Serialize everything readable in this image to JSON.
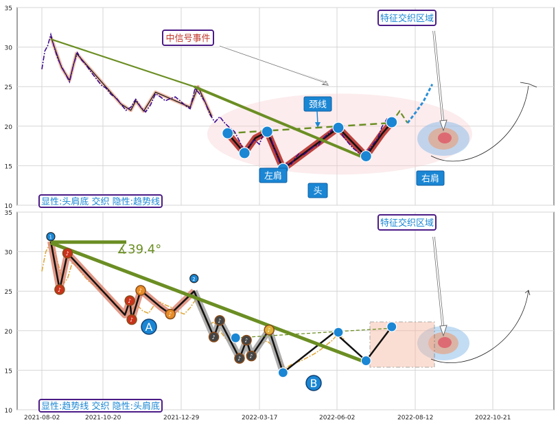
{
  "colors": {
    "axis": "#444444",
    "grid": "#d6d6d6",
    "price": "#3b0a8f",
    "price_bottom": "#e0a83a",
    "pattern": "#111111",
    "pattern_glow_top": "#b3261e",
    "trend": "#6b8e23",
    "node": "#1a86d4",
    "badge_fill": "#1a86d4",
    "callout_border": "#4b1b86",
    "callout_text_red": "#c0392b",
    "callout_text_blue": "#1a86d4",
    "ellipse": "#f6c8cc",
    "target": "#2b8fd6",
    "highlight_box": "#f7b7a0"
  },
  "chart_data": [
    {
      "type": "line",
      "panel": "top",
      "ylim": [
        10,
        35
      ],
      "yticks": [
        "10",
        "15",
        "20",
        "25",
        "30",
        "35"
      ],
      "x_ticks": [
        "2021-08-02",
        "2021-10-20",
        "2021-12-29",
        "2022-03-17",
        "2022-06-02",
        "2022-08-12",
        "2022-10-21"
      ],
      "series": [
        {
          "values_days": [
            [
              0,
              27.2
            ],
            [
              3,
              29.5
            ],
            [
              6,
              30.2
            ],
            [
              9,
              31.6
            ],
            [
              12,
              30.2
            ],
            [
              16,
              28.6
            ],
            [
              20,
              27.5
            ],
            [
              24,
              26.6
            ],
            [
              28,
              25.6
            ],
            [
              32,
              27.8
            ],
            [
              36,
              29.3
            ],
            [
              40,
              28.4
            ],
            [
              45,
              27.7
            ],
            [
              50,
              26.8
            ],
            [
              55,
              26.0
            ],
            [
              60,
              25.2
            ],
            [
              65,
              24.8
            ],
            [
              70,
              24.0
            ],
            [
              75,
              23.6
            ],
            [
              80,
              22.8
            ],
            [
              85,
              22.0
            ],
            [
              90,
              22.4
            ],
            [
              95,
              23.4
            ],
            [
              100,
              22.4
            ],
            [
              105,
              21.8
            ],
            [
              110,
              22.7
            ],
            [
              115,
              24.1
            ],
            [
              120,
              23.7
            ],
            [
              125,
              23.2
            ],
            [
              130,
              23.5
            ],
            [
              135,
              23.7
            ],
            [
              140,
              23.2
            ],
            [
              145,
              22.6
            ],
            [
              150,
              22.2
            ],
            [
              155,
              24.8
            ],
            [
              160,
              24.0
            ],
            [
              165,
              23.1
            ],
            [
              170,
              21.5
            ],
            [
              175,
              20.5
            ],
            [
              180,
              21.2
            ],
            [
              185,
              20.4
            ],
            [
              190,
              19.8
            ],
            [
              195,
              19.3
            ],
            [
              200,
              18.1
            ],
            [
              205,
              16.7
            ],
            [
              210,
              17.5
            ],
            [
              215,
              18.3
            ],
            [
              220,
              17.7
            ],
            [
              225,
              19.2
            ],
            [
              228,
              19.8
            ],
            [
              232,
              18.4
            ],
            [
              236,
              16.9
            ],
            [
              240,
              15.6
            ],
            [
              244,
              14.4
            ],
            [
              248,
              15.3
            ],
            [
              252,
              15.1
            ],
            [
              256,
              15.9
            ],
            [
              260,
              16.5
            ],
            [
              265,
              16.4
            ],
            [
              270,
              16.9
            ],
            [
              275,
              17.4
            ],
            [
              280,
              17.6
            ],
            [
              285,
              18.5
            ],
            [
              290,
              19.1
            ],
            [
              295,
              19.6
            ],
            [
              300,
              19.9
            ],
            [
              305,
              18.7
            ],
            [
              310,
              17.9
            ],
            [
              315,
              17.2
            ],
            [
              320,
              16.7
            ],
            [
              325,
              16.3
            ],
            [
              330,
              16.9
            ],
            [
              335,
              17.7
            ],
            [
              340,
              18.5
            ],
            [
              344,
              19.9
            ],
            [
              349,
              20.9
            ],
            [
              354,
              20.2
            ]
          ]
        },
        {
          "values_days": [
            [
              9,
              31.3
            ],
            [
              20,
              27.4
            ],
            [
              28,
              25.8
            ],
            [
              35,
              29.2
            ],
            [
              80,
              22.8
            ],
            [
              90,
              22.0
            ],
            [
              95,
              23.2
            ],
            [
              103,
              21.9
            ],
            [
              115,
              24.3
            ],
            [
              150,
              22.4
            ],
            [
              158,
              25.0
            ],
            [
              172,
              21.2
            ]
          ]
        },
        {
          "values_days": [
            [
              9,
              31.0
            ],
            [
              154,
              25.0
            ],
            [
              278,
              18.1
            ],
            [
              328,
              15.8
            ],
            [
              354,
              20.5
            ]
          ]
        },
        {
          "values_days": [
            [
              188,
              19.1
            ],
            [
              352,
              20.4
            ]
          ]
        },
        {
          "values_days": [
            [
              354,
              20.5
            ],
            [
              362,
              21.9
            ],
            [
              370,
              20.4
            ],
            [
              378,
              21.7
            ],
            [
              386,
              23.1
            ],
            [
              395,
              25.3
            ]
          ]
        }
      ]
    },
    {
      "type": "line",
      "panel": "bottom",
      "ylim": [
        10,
        35
      ],
      "yticks": [
        "10",
        "15",
        "20",
        "25",
        "30",
        "35"
      ],
      "x_ticks": [
        "2021-08-02",
        "2021-10-20",
        "2021-12-29",
        "2022-03-17",
        "2022-06-02",
        "2022-08-12",
        "2022-10-21"
      ],
      "series": [
        {
          "values_days": [
            [
              0,
              27.5
            ],
            [
              4,
              30.0
            ],
            [
              9,
              31.2
            ],
            [
              13,
              30.0
            ],
            [
              18,
              27.8
            ],
            [
              22,
              26.0
            ],
            [
              26,
              26.6
            ],
            [
              31,
              28.7
            ],
            [
              36,
              28.0
            ],
            [
              42,
              27.0
            ],
            [
              48,
              26.2
            ],
            [
              54,
              25.7
            ],
            [
              60,
              25.0
            ],
            [
              66,
              24.6
            ],
            [
              72,
              23.8
            ],
            [
              78,
              23.0
            ],
            [
              84,
              22.2
            ],
            [
              90,
              22.6
            ],
            [
              96,
              23.3
            ],
            [
              102,
              22.5
            ],
            [
              108,
              22.2
            ],
            [
              114,
              23.3
            ],
            [
              120,
              23.6
            ],
            [
              126,
              23.2
            ],
            [
              132,
              22.9
            ],
            [
              138,
              22.4
            ],
            [
              144,
              22.1
            ],
            [
              150,
              22.9
            ],
            [
              156,
              24.0
            ],
            [
              162,
              22.4
            ],
            [
              168,
              20.7
            ],
            [
              174,
              21.1
            ],
            [
              180,
              20.0
            ],
            [
              186,
              19.0
            ],
            [
              192,
              18.5
            ],
            [
              198,
              17.3
            ],
            [
              204,
              16.8
            ],
            [
              210,
              17.1
            ],
            [
              216,
              17.6
            ],
            [
              222,
              18.4
            ],
            [
              228,
              18.7
            ],
            [
              234,
              18.0
            ],
            [
              240,
              16.6
            ],
            [
              246,
              15.2
            ],
            [
              252,
              15.7
            ],
            [
              258,
              16.0
            ],
            [
              264,
              16.3
            ],
            [
              270,
              16.7
            ],
            [
              276,
              17.1
            ],
            [
              282,
              17.6
            ],
            [
              288,
              18.2
            ],
            [
              294,
              18.8
            ],
            [
              300,
              19.7
            ],
            [
              306,
              18.9
            ]
          ]
        },
        {
          "values_days": [
            [
              9,
              31.3
            ],
            [
              18,
              25.2
            ],
            [
              26,
              29.8
            ],
            [
              84,
              22.0
            ],
            [
              89,
              23.8
            ],
            [
              91,
              21.4
            ],
            [
              100,
              25.1
            ],
            [
              120,
              23.0
            ],
            [
              130,
              22.1
            ],
            [
              154,
              25.0
            ],
            [
              174,
              19.2
            ],
            [
              180,
              21.3
            ],
            [
              200,
              16.5
            ],
            [
              207,
              18.8
            ],
            [
              212,
              16.8
            ],
            [
              230,
              20.1
            ],
            [
              244,
              14.7
            ],
            [
              296,
              19.8
            ],
            [
              328,
              16.2
            ],
            [
              354,
              20.5
            ]
          ]
        },
        {
          "values_days": [
            [
              9,
              31.1
            ],
            [
              328,
              16.0
            ]
          ]
        },
        {
          "values_days": [
            [
              196,
              19.1
            ],
            [
              352,
              20.3
            ]
          ]
        }
      ],
      "annotation": "∡39.4°"
    }
  ],
  "labels": {
    "top_signal": "中信号事件",
    "top_feature": "特征交织区域",
    "neckline": "颈线",
    "left_shoulder": "左肩",
    "head": "头",
    "right_shoulder": "右肩",
    "top_legend": "显性:头肩底 交织 隐性:趋势线",
    "bottom_feature": "特征交织区域",
    "bottom_legend": "显性:趋势线 交织 隐性:头肩底",
    "label_a": "A",
    "label_b": "B",
    "dot1": "1",
    "dot2": "2"
  }
}
